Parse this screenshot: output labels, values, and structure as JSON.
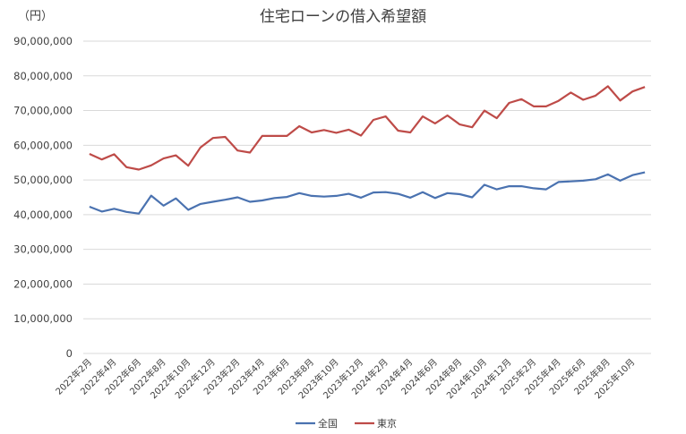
{
  "chart_data": {
    "type": "line",
    "title": "住宅ローンの借入希望額",
    "ylabel": "（円）",
    "xlabel": "",
    "ylim": [
      0,
      90000000
    ],
    "yticks": [
      0,
      10000000,
      20000000,
      30000000,
      40000000,
      50000000,
      60000000,
      70000000,
      80000000,
      90000000
    ],
    "ytick_labels": [
      "0",
      "10,000,000",
      "20,000,000",
      "30,000,000",
      "40,000,000",
      "50,000,000",
      "60,000,000",
      "70,000,000",
      "80,000,000",
      "90,000,000"
    ],
    "grid": true,
    "legend_position": "bottom",
    "x": [
      "2022-02",
      "2022-03",
      "2022-04",
      "2022-05",
      "2022-06",
      "2022-07",
      "2022-08",
      "2022-09",
      "2022-10",
      "2022-11",
      "2022-12",
      "2023-01",
      "2023-02",
      "2023-03",
      "2023-04",
      "2023-05",
      "2023-06",
      "2023-07",
      "2023-08",
      "2023-09",
      "2023-10",
      "2023-11",
      "2023-12",
      "2024-01",
      "2024-02",
      "2024-03",
      "2024-04",
      "2024-05",
      "2024-06",
      "2024-07",
      "2024-08",
      "2024-09",
      "2024-10",
      "2024-11",
      "2024-12",
      "2025-01",
      "2025-02",
      "2025-03",
      "2025-04",
      "2025-05",
      "2025-06",
      "2025-07",
      "2025-08",
      "2025-09",
      "2025-10",
      "2025-11"
    ],
    "x_tick_labels": [
      "2022年2月",
      "2022年4月",
      "2022年6月",
      "2022年8月",
      "2022年10月",
      "2022年12月",
      "2023年2月",
      "2023年4月",
      "2023年6月",
      "2023年8月",
      "2023年10月",
      "2023年12月",
      "2024年2月",
      "2024年4月",
      "2024年6月",
      "2024年8月",
      "2024年10月",
      "2024年12月",
      "2025年2月",
      "2025年4月",
      "2025年6月",
      "2025年8月",
      "2025年10月"
    ],
    "series": [
      {
        "name": "全国",
        "color": "#4a72b0",
        "values": [
          42300000,
          40900000,
          41700000,
          40800000,
          40300000,
          45500000,
          42600000,
          44700000,
          41400000,
          43100000,
          43700000,
          44300000,
          45000000,
          43700000,
          44100000,
          44800000,
          45100000,
          46200000,
          45400000,
          45200000,
          45400000,
          46000000,
          44900000,
          46400000,
          46500000,
          46000000,
          44900000,
          46500000,
          44800000,
          46200000,
          45900000,
          45000000,
          48600000,
          47300000,
          48200000,
          48200000,
          47600000,
          47300000,
          49400000,
          49600000,
          49800000,
          50200000,
          51600000,
          49800000,
          51400000,
          52200000
        ]
      },
      {
        "name": "東京",
        "color": "#be4b48",
        "values": [
          57500000,
          55900000,
          57400000,
          53700000,
          53000000,
          54200000,
          56200000,
          57100000,
          54100000,
          59400000,
          62100000,
          62400000,
          58500000,
          57900000,
          62700000,
          62700000,
          62700000,
          65500000,
          63700000,
          64400000,
          63600000,
          64500000,
          62800000,
          67300000,
          68300000,
          64200000,
          63700000,
          68300000,
          66300000,
          68600000,
          66000000,
          65200000,
          70000000,
          67800000,
          72200000,
          73300000,
          71200000,
          71200000,
          72800000,
          75200000,
          73100000,
          74300000,
          77000000,
          72900000,
          75500000,
          76800000
        ]
      }
    ]
  }
}
